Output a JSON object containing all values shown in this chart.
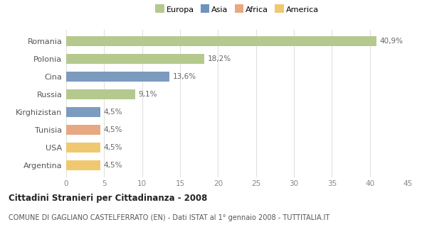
{
  "categories": [
    "Romania",
    "Polonia",
    "Cina",
    "Russia",
    "Kirghizistan",
    "Tunisia",
    "USA",
    "Argentina"
  ],
  "values": [
    40.9,
    18.2,
    13.6,
    9.1,
    4.5,
    4.5,
    4.5,
    4.5
  ],
  "labels": [
    "40,9%",
    "18,2%",
    "13,6%",
    "9,1%",
    "4,5%",
    "4,5%",
    "4,5%",
    "4,5%"
  ],
  "colors": [
    "#b5c98e",
    "#b5c98e",
    "#7b9bbf",
    "#b5c98e",
    "#7b9bbf",
    "#e8a882",
    "#f0c870",
    "#f0c870"
  ],
  "legend_labels": [
    "Europa",
    "Asia",
    "Africa",
    "America"
  ],
  "legend_colors": [
    "#b5c98e",
    "#6e93bf",
    "#e8a882",
    "#f0c870"
  ],
  "title": "Cittadini Stranieri per Cittadinanza - 2008",
  "subtitle": "COMUNE DI GAGLIANO CASTELFERRATO (EN) - Dati ISTAT al 1° gennaio 2008 - TUTTITALIA.IT",
  "xlim": [
    0,
    45
  ],
  "xticks": [
    0,
    5,
    10,
    15,
    20,
    25,
    30,
    35,
    40,
    45
  ],
  "background_color": "#ffffff",
  "grid_color": "#e0e0e0"
}
